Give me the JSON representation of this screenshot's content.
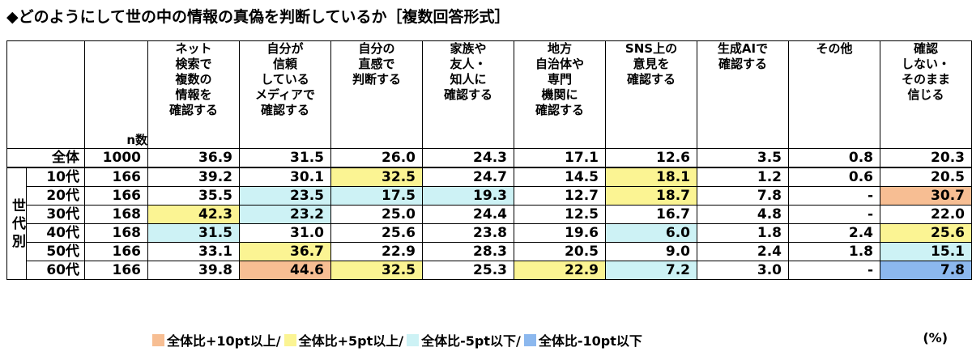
{
  "title": "◆どのようにして世の中の情報の真偽を判断しているか［複数回答形式］",
  "unit": "(%)",
  "colors": {
    "plus10": "#F7BE93",
    "plus5": "#FBF493",
    "minus5": "#CDF2F5",
    "minus10": "#8CB8EE"
  },
  "legend": [
    {
      "key": "plus10",
      "label": "全体比+10pt以上/"
    },
    {
      "key": "plus5",
      "label": "全体比+5pt以上/"
    },
    {
      "key": "minus5",
      "label": "全体比-5pt以下/"
    },
    {
      "key": "minus10",
      "label": "全体比-10pt以下"
    }
  ],
  "chart_data": {
    "type": "table",
    "n_header": "n数",
    "group_label": "世代別",
    "columns": [
      [
        "ネット",
        "検索で",
        "複数の",
        "情報を",
        "確認する"
      ],
      [
        "自分が",
        "信頼",
        "している",
        "メディアで",
        "確認する"
      ],
      [
        "自分の",
        "直感で",
        "判断する"
      ],
      [
        "家族や",
        "友人・",
        "知人に",
        "確認する"
      ],
      [
        "地方",
        "自治体や",
        "専門",
        "機関に",
        "確認する"
      ],
      [
        "SNS上の",
        "意見を",
        "確認する"
      ],
      [
        "生成AIで",
        "確認する"
      ],
      [
        "その他"
      ],
      [
        "確認",
        "しない・",
        "そのまま",
        "信じる"
      ]
    ],
    "rows": [
      {
        "label": "全体",
        "n": "1000",
        "values": [
          "36.9",
          "31.5",
          "26.0",
          "24.3",
          "17.1",
          "12.6",
          "3.5",
          "0.8",
          "20.3"
        ],
        "highlight": [
          null,
          null,
          null,
          null,
          null,
          null,
          null,
          null,
          null
        ]
      },
      {
        "label": "10代",
        "n": "166",
        "values": [
          "39.2",
          "30.1",
          "32.5",
          "24.7",
          "14.5",
          "18.1",
          "1.2",
          "0.6",
          "20.5"
        ],
        "highlight": [
          null,
          null,
          "plus5",
          null,
          null,
          "plus5",
          null,
          null,
          null
        ]
      },
      {
        "label": "20代",
        "n": "166",
        "values": [
          "35.5",
          "23.5",
          "17.5",
          "19.3",
          "12.7",
          "18.7",
          "7.8",
          "-",
          "30.7"
        ],
        "highlight": [
          null,
          "minus5",
          "minus5",
          "minus5",
          null,
          "plus5",
          null,
          null,
          "plus10"
        ]
      },
      {
        "label": "30代",
        "n": "168",
        "values": [
          "42.3",
          "23.2",
          "25.0",
          "24.4",
          "12.5",
          "16.7",
          "4.8",
          "-",
          "22.0"
        ],
        "highlight": [
          "plus5",
          "minus5",
          null,
          null,
          null,
          null,
          null,
          null,
          null
        ]
      },
      {
        "label": "40代",
        "n": "168",
        "values": [
          "31.5",
          "31.0",
          "25.6",
          "23.8",
          "19.6",
          "6.0",
          "1.8",
          "2.4",
          "25.6"
        ],
        "highlight": [
          "minus5",
          null,
          null,
          null,
          null,
          "minus5",
          null,
          null,
          "plus5"
        ]
      },
      {
        "label": "50代",
        "n": "166",
        "values": [
          "33.1",
          "36.7",
          "22.9",
          "28.3",
          "20.5",
          "9.0",
          "2.4",
          "1.8",
          "15.1"
        ],
        "highlight": [
          null,
          "plus5",
          null,
          null,
          null,
          null,
          null,
          null,
          "minus5"
        ]
      },
      {
        "label": "60代",
        "n": "166",
        "values": [
          "39.8",
          "44.6",
          "32.5",
          "25.3",
          "22.9",
          "7.2",
          "3.0",
          "-",
          "7.8"
        ],
        "highlight": [
          null,
          "plus10",
          "plus5",
          null,
          "plus5",
          "minus5",
          null,
          null,
          "minus10"
        ]
      }
    ]
  }
}
